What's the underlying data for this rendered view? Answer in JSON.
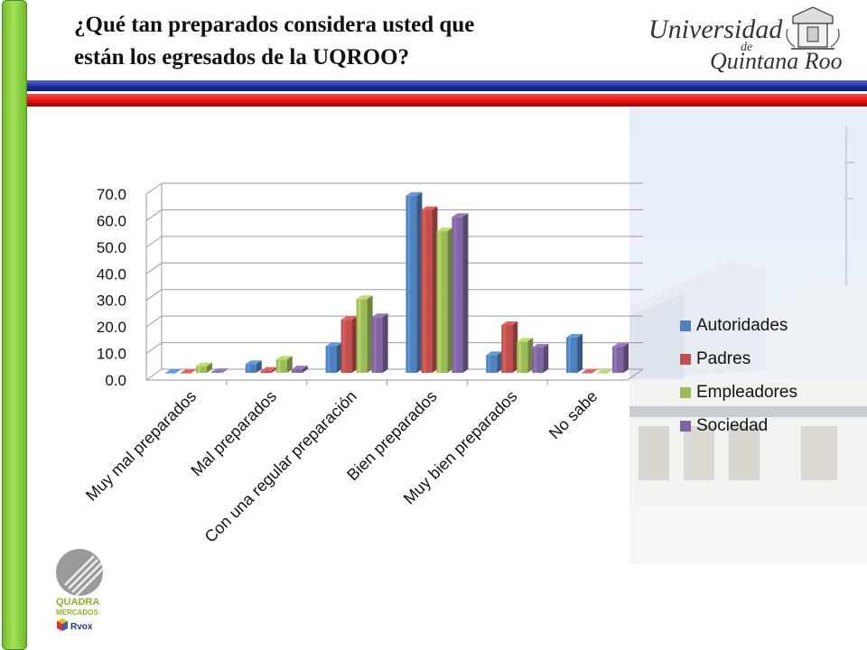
{
  "slide": {
    "title_line1": "¿Qué tan preparados considera usted que",
    "title_line2": "están los egresados de la UQROO?",
    "logo_university": "Universidad",
    "logo_de": "de",
    "logo_quintana": "Quintana Roo",
    "bottom_logo_quadra": "QUADRA",
    "bottom_logo_mercados": "MERCADOS",
    "bottom_logo_rvox": "Rvox"
  },
  "colors": {
    "left_bar": "#8ad23e",
    "stripe_blue": "#1a2a9a",
    "stripe_red": "#e01010",
    "series": [
      "#4f81bd",
      "#c0504d",
      "#9bbb59",
      "#8064a2"
    ]
  },
  "chart_data": {
    "type": "bar",
    "categories": [
      "Muy mal preparados",
      "Mal preparados",
      "Con una regular preparación",
      "Bien preparados",
      "Muy bien preparados",
      "No sabe"
    ],
    "series": [
      {
        "name": "Autoridades",
        "values": [
          0.0,
          3.3,
          10.0,
          66.7,
          6.7,
          13.3
        ]
      },
      {
        "name": "Padres",
        "values": [
          0.0,
          0.8,
          20.0,
          61.3,
          18.0,
          0.0
        ]
      },
      {
        "name": "Empleadores",
        "values": [
          2.5,
          5.0,
          27.8,
          53.3,
          11.8,
          0.0
        ]
      },
      {
        "name": "Sociedad",
        "values": [
          0.3,
          1.3,
          21.0,
          58.7,
          9.5,
          9.8
        ]
      }
    ],
    "yticks": [
      "0.0",
      "10.0",
      "20.0",
      "30.0",
      "40.0",
      "50.0",
      "60.0",
      "70.0"
    ],
    "ylim": [
      0,
      70
    ],
    "grid": true,
    "legend_position": "right",
    "title": "",
    "xlabel": "",
    "ylabel": ""
  }
}
